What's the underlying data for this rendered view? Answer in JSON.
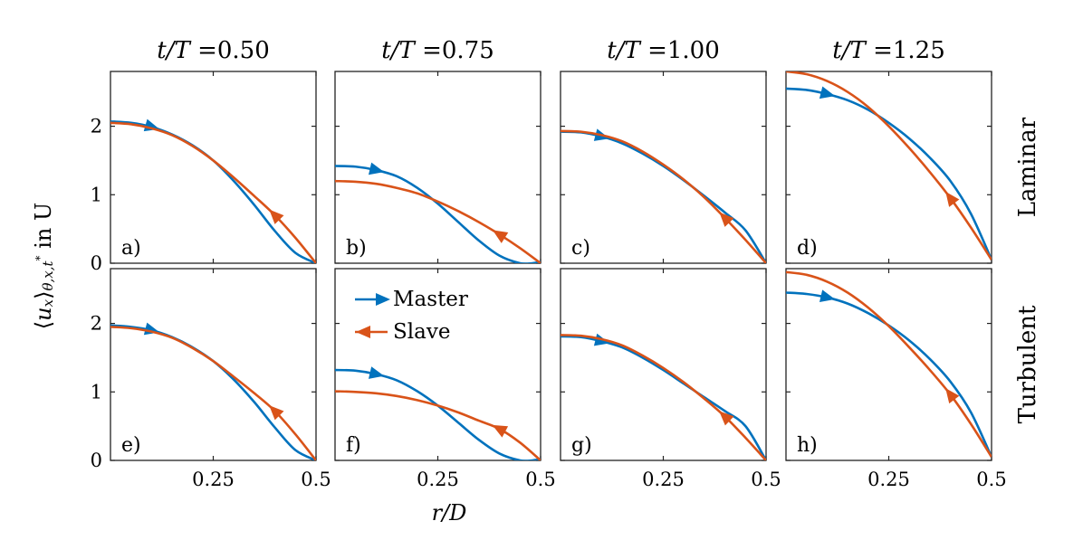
{
  "chart_data": {
    "type": "line",
    "series_names": [
      "Master",
      "Slave"
    ],
    "colors": {
      "master": "#0072BD",
      "slave": "#D95319"
    },
    "xlabel": "r/D",
    "ylabel": "⟨u_x⟩_{θ,x,t*} in U",
    "ylabel_parts": {
      "open": "⟨",
      "var": "u",
      "sub1": "x",
      "close": "⟩",
      "sub2": "θ,x,t",
      "star": "*",
      "tail": " in U"
    },
    "xlim": [
      0,
      0.5
    ],
    "ylim": [
      0,
      2.8
    ],
    "xticks": [
      0.25,
      0.5
    ],
    "xtick_labels": [
      "0.25",
      "0.5"
    ],
    "yticks": [
      0,
      1,
      2
    ],
    "ytick_labels": [
      "0",
      "1",
      "2"
    ],
    "legend": {
      "location": "panel f, top-left",
      "entries": [
        "Master",
        "Slave"
      ]
    },
    "columns": [
      {
        "prefix": "t/T",
        "value": "=0.50"
      },
      {
        "prefix": "t/T",
        "value": "=0.75"
      },
      {
        "prefix": "t/T",
        "value": "=1.00"
      },
      {
        "prefix": "t/T",
        "value": "=1.25"
      }
    ],
    "rows": [
      "Laminar",
      "Turbulent"
    ],
    "panels": [
      {
        "label": "a)",
        "row": 0,
        "col": 0,
        "master": {
          "r": [
            0,
            0.05,
            0.1,
            0.15,
            0.2,
            0.25,
            0.3,
            0.35,
            0.4,
            0.45,
            0.5
          ],
          "u": [
            2.07,
            2.05,
            1.99,
            1.88,
            1.72,
            1.5,
            1.2,
            0.85,
            0.47,
            0.15,
            0.0
          ],
          "marker_r": 0.1
        },
        "slave": {
          "r": [
            0,
            0.05,
            0.1,
            0.15,
            0.2,
            0.25,
            0.3,
            0.35,
            0.4,
            0.45,
            0.5
          ],
          "u": [
            2.05,
            2.03,
            1.97,
            1.87,
            1.71,
            1.5,
            1.25,
            0.98,
            0.7,
            0.37,
            0.0
          ],
          "marker_r": 0.4
        }
      },
      {
        "label": "b)",
        "row": 0,
        "col": 1,
        "master": {
          "r": [
            0,
            0.05,
            0.1,
            0.15,
            0.2,
            0.25,
            0.3,
            0.35,
            0.4,
            0.45,
            0.48,
            0.5
          ],
          "u": [
            1.42,
            1.41,
            1.36,
            1.27,
            1.1,
            0.87,
            0.6,
            0.33,
            0.11,
            0.0,
            0.0,
            0.02
          ],
          "marker_r": 0.1
        },
        "slave": {
          "r": [
            0,
            0.05,
            0.1,
            0.15,
            0.2,
            0.25,
            0.3,
            0.35,
            0.4,
            0.45,
            0.5
          ],
          "u": [
            1.2,
            1.19,
            1.16,
            1.1,
            1.02,
            0.9,
            0.76,
            0.6,
            0.42,
            0.22,
            0.0
          ],
          "marker_r": 0.4
        }
      },
      {
        "label": "c)",
        "row": 0,
        "col": 2,
        "master": {
          "r": [
            0,
            0.05,
            0.1,
            0.15,
            0.2,
            0.25,
            0.3,
            0.35,
            0.4,
            0.45,
            0.5
          ],
          "u": [
            1.92,
            1.91,
            1.85,
            1.75,
            1.6,
            1.42,
            1.21,
            0.98,
            0.74,
            0.48,
            0.0
          ],
          "marker_r": 0.1
        },
        "slave": {
          "r": [
            0,
            0.05,
            0.1,
            0.15,
            0.2,
            0.25,
            0.3,
            0.35,
            0.4,
            0.45,
            0.5
          ],
          "u": [
            1.93,
            1.92,
            1.87,
            1.78,
            1.63,
            1.44,
            1.22,
            0.96,
            0.66,
            0.34,
            0.0
          ],
          "marker_r": 0.4
        }
      },
      {
        "label": "d)",
        "row": 0,
        "col": 3,
        "master": {
          "r": [
            0,
            0.05,
            0.1,
            0.15,
            0.2,
            0.25,
            0.3,
            0.35,
            0.4,
            0.45,
            0.5
          ],
          "u": [
            2.55,
            2.53,
            2.47,
            2.38,
            2.24,
            2.05,
            1.82,
            1.54,
            1.2,
            0.72,
            0.05
          ],
          "marker_r": 0.1
        },
        "slave": {
          "r": [
            0,
            0.05,
            0.1,
            0.15,
            0.2,
            0.25,
            0.3,
            0.35,
            0.4,
            0.45,
            0.5
          ],
          "u": [
            2.8,
            2.76,
            2.66,
            2.5,
            2.28,
            2.0,
            1.68,
            1.33,
            0.95,
            0.52,
            0.05
          ],
          "marker_r": 0.4
        }
      },
      {
        "label": "e)",
        "row": 1,
        "col": 0,
        "master": {
          "r": [
            0,
            0.05,
            0.1,
            0.15,
            0.2,
            0.25,
            0.3,
            0.35,
            0.4,
            0.45,
            0.5
          ],
          "u": [
            1.97,
            1.95,
            1.9,
            1.8,
            1.65,
            1.45,
            1.18,
            0.85,
            0.48,
            0.15,
            0.0
          ],
          "marker_r": 0.1
        },
        "slave": {
          "r": [
            0,
            0.05,
            0.1,
            0.15,
            0.2,
            0.25,
            0.3,
            0.35,
            0.4,
            0.45,
            0.5
          ],
          "u": [
            1.95,
            1.93,
            1.88,
            1.79,
            1.64,
            1.45,
            1.22,
            0.98,
            0.72,
            0.38,
            0.0
          ],
          "marker_r": 0.4
        }
      },
      {
        "label": "f)",
        "row": 1,
        "col": 1,
        "master": {
          "r": [
            0,
            0.05,
            0.1,
            0.15,
            0.2,
            0.25,
            0.3,
            0.35,
            0.4,
            0.45,
            0.48,
            0.5
          ],
          "u": [
            1.32,
            1.31,
            1.26,
            1.17,
            1.01,
            0.8,
            0.55,
            0.3,
            0.1,
            0.0,
            0.0,
            0.02
          ],
          "marker_r": 0.1
        },
        "slave": {
          "r": [
            0,
            0.05,
            0.1,
            0.15,
            0.2,
            0.25,
            0.3,
            0.35,
            0.4,
            0.45,
            0.5
          ],
          "u": [
            1.01,
            1.0,
            0.98,
            0.94,
            0.88,
            0.8,
            0.7,
            0.58,
            0.46,
            0.26,
            0.0
          ],
          "marker_r": 0.4
        }
      },
      {
        "label": "g)",
        "row": 1,
        "col": 2,
        "master": {
          "r": [
            0,
            0.05,
            0.1,
            0.15,
            0.2,
            0.25,
            0.3,
            0.35,
            0.4,
            0.45,
            0.5
          ],
          "u": [
            1.81,
            1.8,
            1.74,
            1.65,
            1.5,
            1.32,
            1.12,
            0.92,
            0.72,
            0.5,
            0.0
          ],
          "marker_r": 0.1
        },
        "slave": {
          "r": [
            0,
            0.05,
            0.1,
            0.15,
            0.2,
            0.25,
            0.3,
            0.35,
            0.4,
            0.45,
            0.5
          ],
          "u": [
            1.83,
            1.82,
            1.77,
            1.68,
            1.53,
            1.35,
            1.14,
            0.9,
            0.64,
            0.33,
            0.0
          ],
          "marker_r": 0.4
        }
      },
      {
        "label": "h)",
        "row": 1,
        "col": 3,
        "master": {
          "r": [
            0,
            0.05,
            0.1,
            0.15,
            0.2,
            0.25,
            0.3,
            0.35,
            0.4,
            0.45,
            0.5
          ],
          "u": [
            2.45,
            2.43,
            2.38,
            2.29,
            2.15,
            1.97,
            1.75,
            1.48,
            1.15,
            0.7,
            0.05
          ],
          "marker_r": 0.1
        },
        "slave": {
          "r": [
            0,
            0.05,
            0.1,
            0.15,
            0.2,
            0.25,
            0.3,
            0.35,
            0.4,
            0.45,
            0.5
          ],
          "u": [
            2.75,
            2.71,
            2.61,
            2.45,
            2.23,
            1.96,
            1.65,
            1.32,
            0.96,
            0.53,
            0.05
          ],
          "marker_r": 0.4
        }
      }
    ]
  }
}
